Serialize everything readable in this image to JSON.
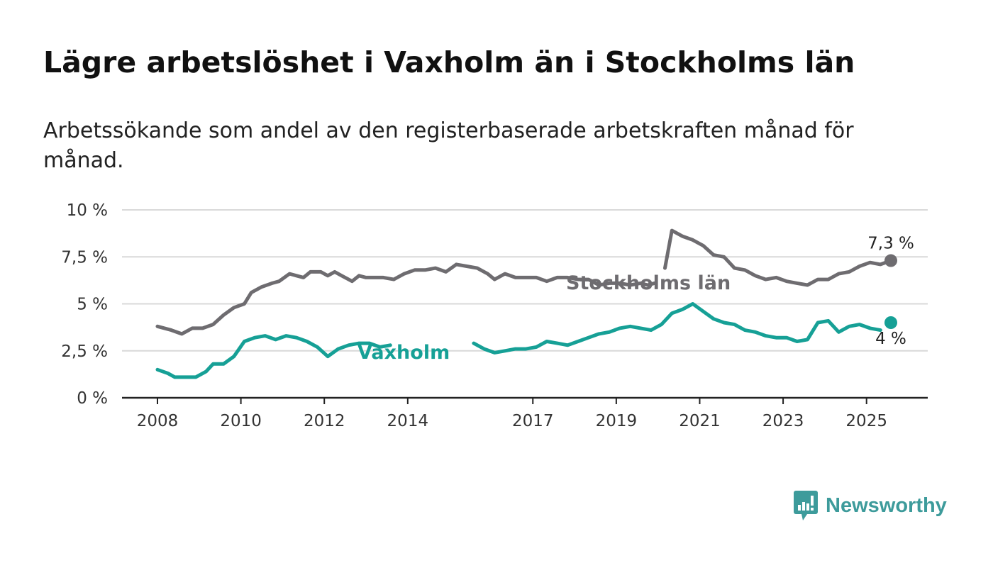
{
  "title": "Lägre arbetslöshet i Vaxholm än i Stockholms län",
  "subtitle": "Arbetssökande som andel av den registerbaserade arbetskraften månad för månad.",
  "brand": {
    "name": "Newsworthy",
    "logo_icon": "bar-chart-speech-bubble-icon",
    "color": "#3d9b9b"
  },
  "chart_data": {
    "type": "line",
    "title": "Lägre arbetslöshet i Vaxholm än i Stockholms län",
    "subtitle": "Arbetssökande som andel av den registerbaserade arbetskraften månad för månad.",
    "xlabel": "",
    "ylabel": "",
    "xlim": [
      "2008-01",
      "2025-08"
    ],
    "ylim": [
      0,
      10
    ],
    "grid": true,
    "y_ticks": [
      {
        "value": 0,
        "label": "0 %"
      },
      {
        "value": 2.5,
        "label": "2,5 %"
      },
      {
        "value": 5,
        "label": "5 %"
      },
      {
        "value": 7.5,
        "label": "7,5 %"
      },
      {
        "value": 10,
        "label": "10 %"
      }
    ],
    "x_ticks": [
      {
        "value": "2008-01",
        "label": "2008"
      },
      {
        "value": "2010-01",
        "label": "2010"
      },
      {
        "value": "2012-01",
        "label": "2012"
      },
      {
        "value": "2014-01",
        "label": "2014"
      },
      {
        "value": "2017-01",
        "label": "2017"
      },
      {
        "value": "2019-01",
        "label": "2019"
      },
      {
        "value": "2021-01",
        "label": "2021"
      },
      {
        "value": "2023-01",
        "label": "2023"
      },
      {
        "value": "2025-01",
        "label": "2025"
      }
    ],
    "series": [
      {
        "name": "Stockholms län",
        "color": "#6e6c70",
        "end_label": "7,3 %",
        "points": [
          [
            "2008-01",
            3.8
          ],
          [
            "2008-05",
            3.6
          ],
          [
            "2008-08",
            3.4
          ],
          [
            "2008-11",
            3.7
          ],
          [
            "2009-02",
            3.7
          ],
          [
            "2009-05",
            3.9
          ],
          [
            "2009-08",
            4.4
          ],
          [
            "2009-11",
            4.8
          ],
          [
            "2010-02",
            5.0
          ],
          [
            "2010-04",
            5.6
          ],
          [
            "2010-07",
            5.9
          ],
          [
            "2010-10",
            6.1
          ],
          [
            "2010-12",
            6.2
          ],
          [
            "2011-03",
            6.6
          ],
          [
            "2011-05",
            6.5
          ],
          [
            "2011-07",
            6.4
          ],
          [
            "2011-09",
            6.7
          ],
          [
            "2011-12",
            6.7
          ],
          [
            "2012-02",
            6.5
          ],
          [
            "2012-04",
            6.7
          ],
          [
            "2012-06",
            6.5
          ],
          [
            "2012-09",
            6.2
          ],
          [
            "2012-11",
            6.5
          ],
          [
            "2013-01",
            6.4
          ],
          [
            "2013-03",
            6.4
          ],
          [
            "2013-06",
            6.4
          ],
          [
            "2013-09",
            6.3
          ],
          [
            "2013-12",
            6.6
          ],
          [
            "2014-03",
            6.8
          ],
          [
            "2014-06",
            6.8
          ],
          [
            "2014-09",
            6.9
          ],
          [
            "2014-12",
            6.7
          ],
          [
            "2015-03",
            7.1
          ],
          [
            "2015-06",
            7.0
          ],
          [
            "2015-09",
            6.9
          ],
          [
            "2015-12",
            6.6
          ],
          [
            "2016-02",
            6.3
          ],
          [
            "2016-05",
            6.6
          ],
          [
            "2016-08",
            6.4
          ],
          [
            "2016-11",
            6.4
          ],
          [
            "2017-02",
            6.4
          ],
          [
            "2017-05",
            6.2
          ],
          [
            "2017-08",
            6.4
          ],
          [
            "2017-11",
            6.4
          ],
          [
            "2018-02",
            6.3
          ],
          [
            "2018-05",
            6.3
          ],
          [
            "2018-08",
            6.0
          ],
          [
            "2018-11",
            6.1
          ],
          [
            "2019-02",
            6.1
          ],
          [
            "2019-05",
            6.0
          ],
          [
            "2019-08",
            6.1
          ],
          [
            "2019-10",
            6.0
          ],
          [
            "2019-12",
            6.1
          ]
        ],
        "points_after_label": [
          [
            "2020-03",
            6.9
          ],
          [
            "2020-05",
            8.9
          ],
          [
            "2020-08",
            8.6
          ],
          [
            "2020-11",
            8.4
          ],
          [
            "2021-02",
            8.1
          ],
          [
            "2021-05",
            7.6
          ],
          [
            "2021-08",
            7.5
          ],
          [
            "2021-11",
            6.9
          ],
          [
            "2022-02",
            6.8
          ],
          [
            "2022-05",
            6.5
          ],
          [
            "2022-08",
            6.3
          ],
          [
            "2022-11",
            6.4
          ],
          [
            "2023-02",
            6.2
          ],
          [
            "2023-05",
            6.1
          ],
          [
            "2023-08",
            6.0
          ],
          [
            "2023-11",
            6.3
          ],
          [
            "2024-02",
            6.3
          ],
          [
            "2024-05",
            6.6
          ],
          [
            "2024-08",
            6.7
          ],
          [
            "2024-11",
            7.0
          ],
          [
            "2025-02",
            7.2
          ],
          [
            "2025-05",
            7.1
          ],
          [
            "2025-08",
            7.3
          ]
        ]
      },
      {
        "name": "Vaxholm",
        "color": "#16a096",
        "end_label": "4 %",
        "points": [
          [
            "2008-01",
            1.5
          ],
          [
            "2008-04",
            1.3
          ],
          [
            "2008-06",
            1.1
          ],
          [
            "2008-09",
            1.1
          ],
          [
            "2008-12",
            1.1
          ],
          [
            "2009-03",
            1.4
          ],
          [
            "2009-05",
            1.8
          ],
          [
            "2009-08",
            1.8
          ],
          [
            "2009-11",
            2.2
          ],
          [
            "2010-02",
            3.0
          ],
          [
            "2010-05",
            3.2
          ],
          [
            "2010-08",
            3.3
          ],
          [
            "2010-11",
            3.1
          ],
          [
            "2011-02",
            3.3
          ],
          [
            "2011-05",
            3.2
          ],
          [
            "2011-08",
            3.0
          ],
          [
            "2011-11",
            2.7
          ],
          [
            "2012-02",
            2.2
          ],
          [
            "2012-05",
            2.6
          ],
          [
            "2012-08",
            2.8
          ],
          [
            "2012-11",
            2.9
          ],
          [
            "2013-02",
            2.9
          ],
          [
            "2013-05",
            2.7
          ],
          [
            "2013-08",
            2.8
          ]
        ],
        "points_after_label": [
          [
            "2015-08",
            2.9
          ],
          [
            "2015-11",
            2.6
          ],
          [
            "2016-02",
            2.4
          ],
          [
            "2016-05",
            2.5
          ],
          [
            "2016-08",
            2.6
          ],
          [
            "2016-11",
            2.6
          ],
          [
            "2017-02",
            2.7
          ],
          [
            "2017-05",
            3.0
          ],
          [
            "2017-08",
            2.9
          ],
          [
            "2017-11",
            2.8
          ],
          [
            "2018-02",
            3.0
          ],
          [
            "2018-05",
            3.2
          ],
          [
            "2018-08",
            3.4
          ],
          [
            "2018-11",
            3.5
          ],
          [
            "2019-02",
            3.7
          ],
          [
            "2019-05",
            3.8
          ],
          [
            "2019-08",
            3.7
          ],
          [
            "2019-11",
            3.6
          ],
          [
            "2020-02",
            3.9
          ],
          [
            "2020-05",
            4.5
          ],
          [
            "2020-08",
            4.7
          ],
          [
            "2020-11",
            5.0
          ],
          [
            "2021-02",
            4.6
          ],
          [
            "2021-05",
            4.2
          ],
          [
            "2021-08",
            4.0
          ],
          [
            "2021-11",
            3.9
          ],
          [
            "2022-02",
            3.6
          ],
          [
            "2022-05",
            3.5
          ],
          [
            "2022-08",
            3.3
          ],
          [
            "2022-11",
            3.2
          ],
          [
            "2023-02",
            3.2
          ],
          [
            "2023-05",
            3.0
          ],
          [
            "2023-08",
            3.1
          ],
          [
            "2023-11",
            4.0
          ],
          [
            "2024-02",
            4.1
          ],
          [
            "2024-05",
            3.5
          ],
          [
            "2024-08",
            3.8
          ],
          [
            "2024-11",
            3.9
          ],
          [
            "2025-02",
            3.7
          ],
          [
            "2025-05",
            3.6
          ]
        ],
        "end_point": [
          "2025-08",
          4.0
        ]
      }
    ]
  }
}
